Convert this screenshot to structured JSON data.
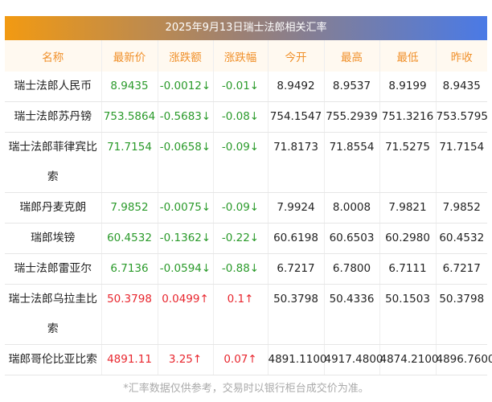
{
  "title": "2025年9月13日瑞士法郎相关汇率",
  "headers": [
    "名称",
    "最新价",
    "涨跌额",
    "涨跌幅",
    "今开",
    "最高",
    "最低",
    "昨收"
  ],
  "rows": [
    {
      "name": "瑞士法郎人民币",
      "latest": "8.9435",
      "change": "-0.0012↓",
      "pct": "-0.01↓",
      "open": "8.9492",
      "high": "8.9537",
      "low": "8.9199",
      "prev": "8.9435",
      "dir": "down"
    },
    {
      "name": "瑞士法郎苏丹镑",
      "latest": "753.5864",
      "change": "-0.5683↓",
      "pct": "-0.08↓",
      "open": "754.1547",
      "high": "755.2939",
      "low": "751.3216",
      "prev": "753.5795",
      "dir": "down"
    },
    {
      "name": "瑞士法郎菲律宾比索",
      "latest": "71.7154",
      "change": "-0.0658↓",
      "pct": "-0.09↓",
      "open": "71.8173",
      "high": "71.8554",
      "low": "71.5275",
      "prev": "71.7154",
      "dir": "down"
    },
    {
      "name": "瑞郎丹麦克朗",
      "latest": "7.9852",
      "change": "-0.0075↓",
      "pct": "-0.09↓",
      "open": "7.9924",
      "high": "8.0008",
      "low": "7.9821",
      "prev": "7.9852",
      "dir": "down"
    },
    {
      "name": "瑞郎埃镑",
      "latest": "60.4532",
      "change": "-0.1362↓",
      "pct": "-0.22↓",
      "open": "60.6198",
      "high": "60.6503",
      "low": "60.2980",
      "prev": "60.4532",
      "dir": "down"
    },
    {
      "name": "瑞士法郎雷亚尔",
      "latest": "6.7136",
      "change": "-0.0594↓",
      "pct": "-0.88↓",
      "open": "6.7217",
      "high": "6.7800",
      "low": "6.7111",
      "prev": "6.7217",
      "dir": "down"
    },
    {
      "name": "瑞士法郎乌拉圭比索",
      "latest": "50.3798",
      "change": "0.0499↑",
      "pct": "0.1↑",
      "open": "50.3798",
      "high": "50.4336",
      "low": "50.1503",
      "prev": "50.3798",
      "dir": "up"
    },
    {
      "name": "瑞郎哥伦比亚比索",
      "latest": "4891.11",
      "change": "3.25↑",
      "pct": "0.07↑",
      "open": "4891.1100",
      "high": "4917.4800",
      "low": "4874.2100",
      "prev": "4896.7600",
      "dir": "up"
    }
  ],
  "footer": "*汇率数据仅供参考，交易时以银行柜台成交价为准。"
}
